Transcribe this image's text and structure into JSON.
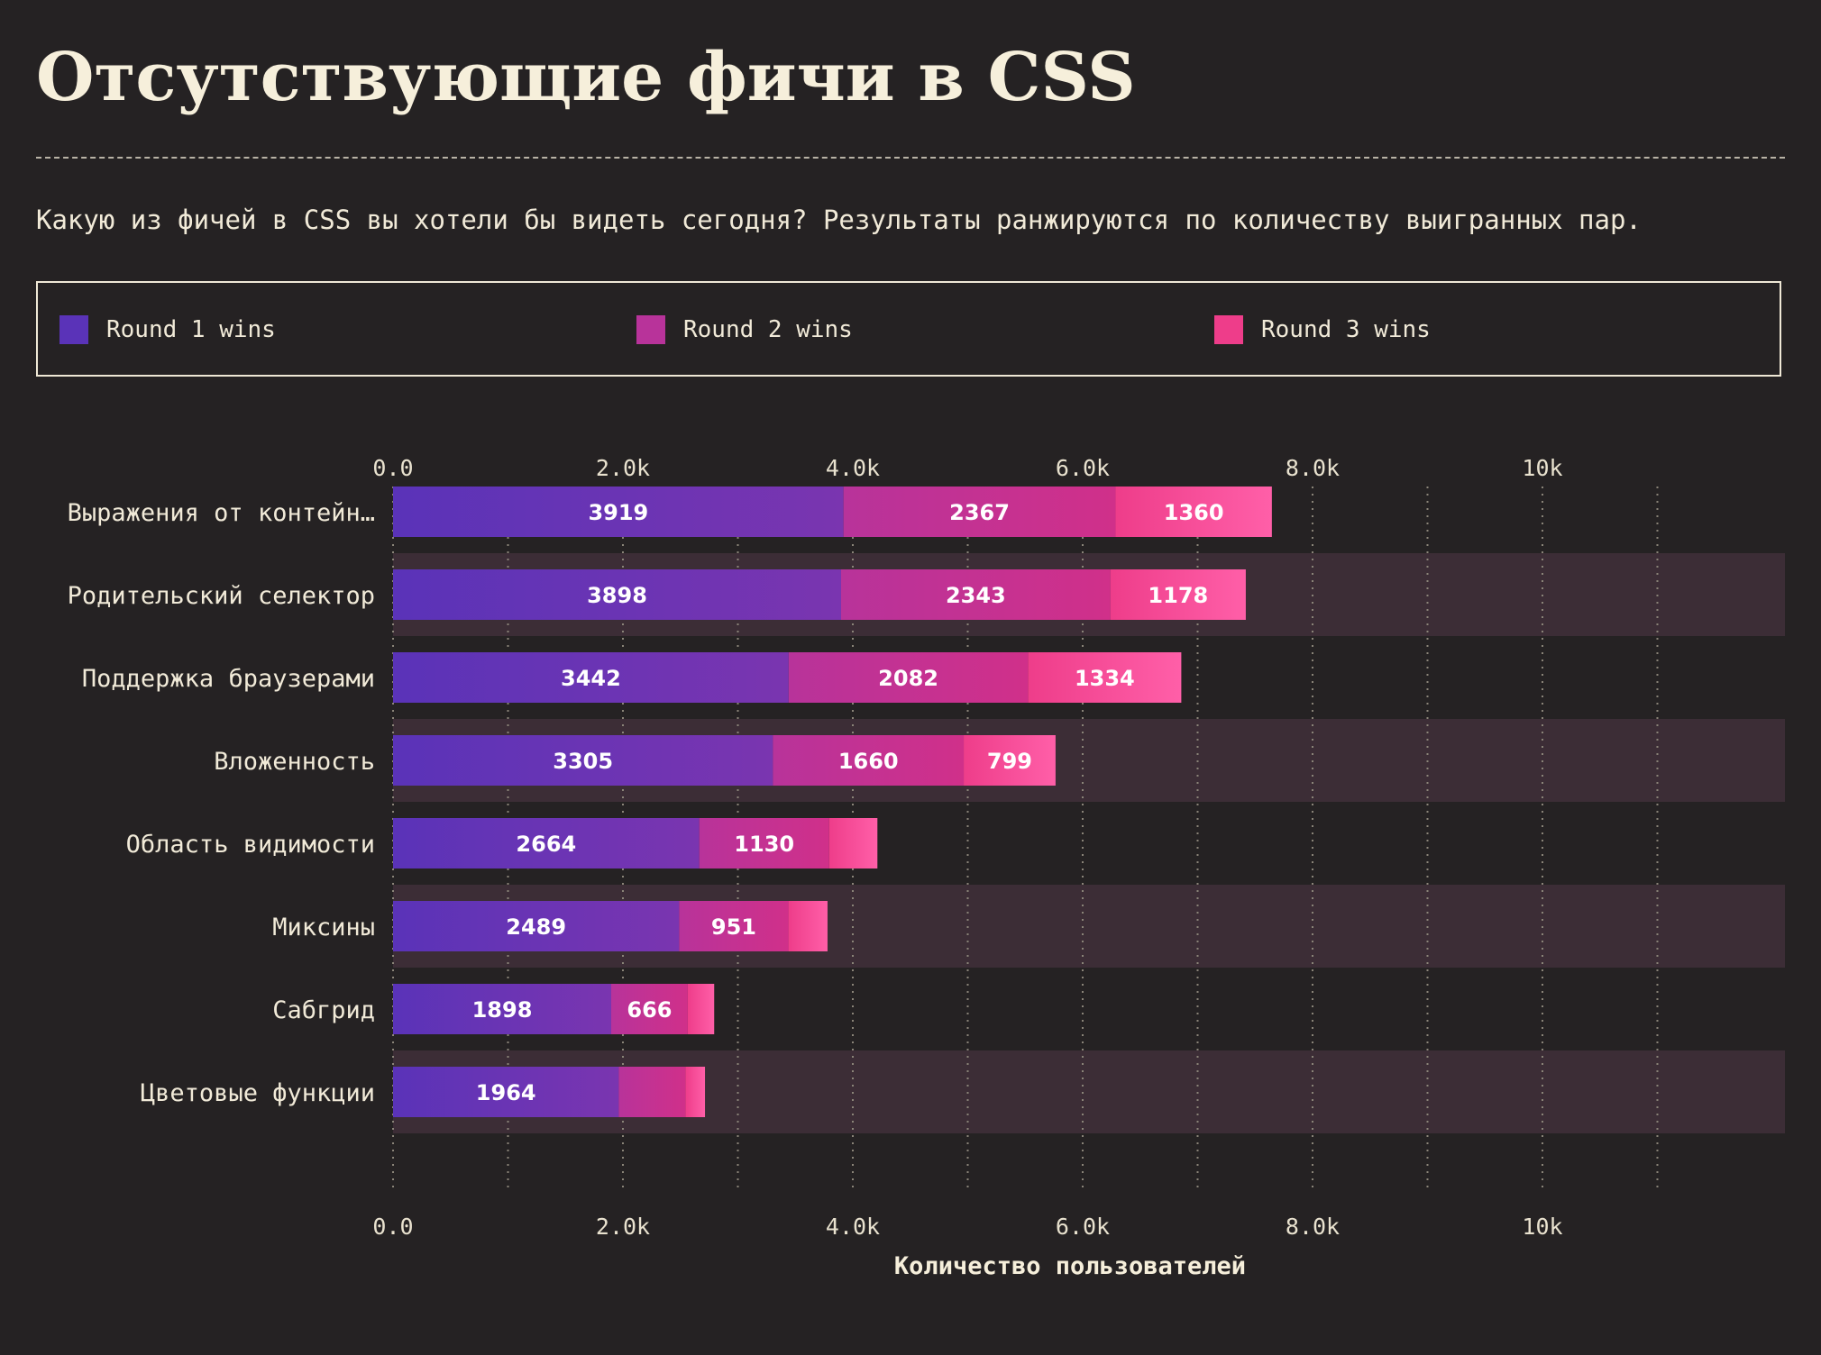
{
  "title": "Отсутствующие фичи в CSS",
  "subtitle": "Какую из фичей в CSS вы хотели бы видеть сегодня? Результаты ранжируются по количеству выигранных пар.",
  "colors": {
    "round1": "#5a33b8",
    "round2": "#b8339a",
    "round3": "#ee3d8a",
    "background": "#252223",
    "stripe": "#3c2d36"
  },
  "chart_data": {
    "type": "bar",
    "orientation": "horizontal",
    "stacked": true,
    "categories": [
      "Выражения от контейн…",
      "Родительский селектор",
      "Поддержка браузерами",
      "Вложенность",
      "Область видимости",
      "Миксины",
      "Сабгрид",
      "Цветовые функции"
    ],
    "series": [
      {
        "name": "Round 1 wins",
        "values": [
          3919,
          3898,
          3442,
          3305,
          2664,
          2489,
          1898,
          1964
        ]
      },
      {
        "name": "Round 2 wins",
        "values": [
          2367,
          2343,
          2082,
          1660,
          1130,
          951,
          666,
          580
        ]
      },
      {
        "name": "Round 3 wins",
        "values": [
          1360,
          1178,
          1334,
          799,
          420,
          340,
          230,
          170
        ]
      }
    ],
    "value_labels_shown": [
      [
        true,
        true,
        true,
        true,
        true,
        true,
        true,
        true
      ],
      [
        true,
        true,
        true,
        true,
        true,
        true,
        true,
        false
      ],
      [
        true,
        true,
        true,
        true,
        false,
        false,
        false,
        false
      ]
    ],
    "xlim": [
      0,
      12100
    ],
    "x_ticks": [
      0,
      2000,
      4000,
      6000,
      8000,
      10000
    ],
    "x_tick_labels": [
      "0.0",
      "2.0k",
      "4.0k",
      "6.0k",
      "8.0k",
      "10k"
    ],
    "x_minor_grid": [
      1000,
      3000,
      5000,
      7000,
      9000,
      11000
    ],
    "xlabel": "Количество пользователей",
    "ylabel": "",
    "grid": true,
    "legend_position": "top",
    "alternating_row_stripes": true
  }
}
